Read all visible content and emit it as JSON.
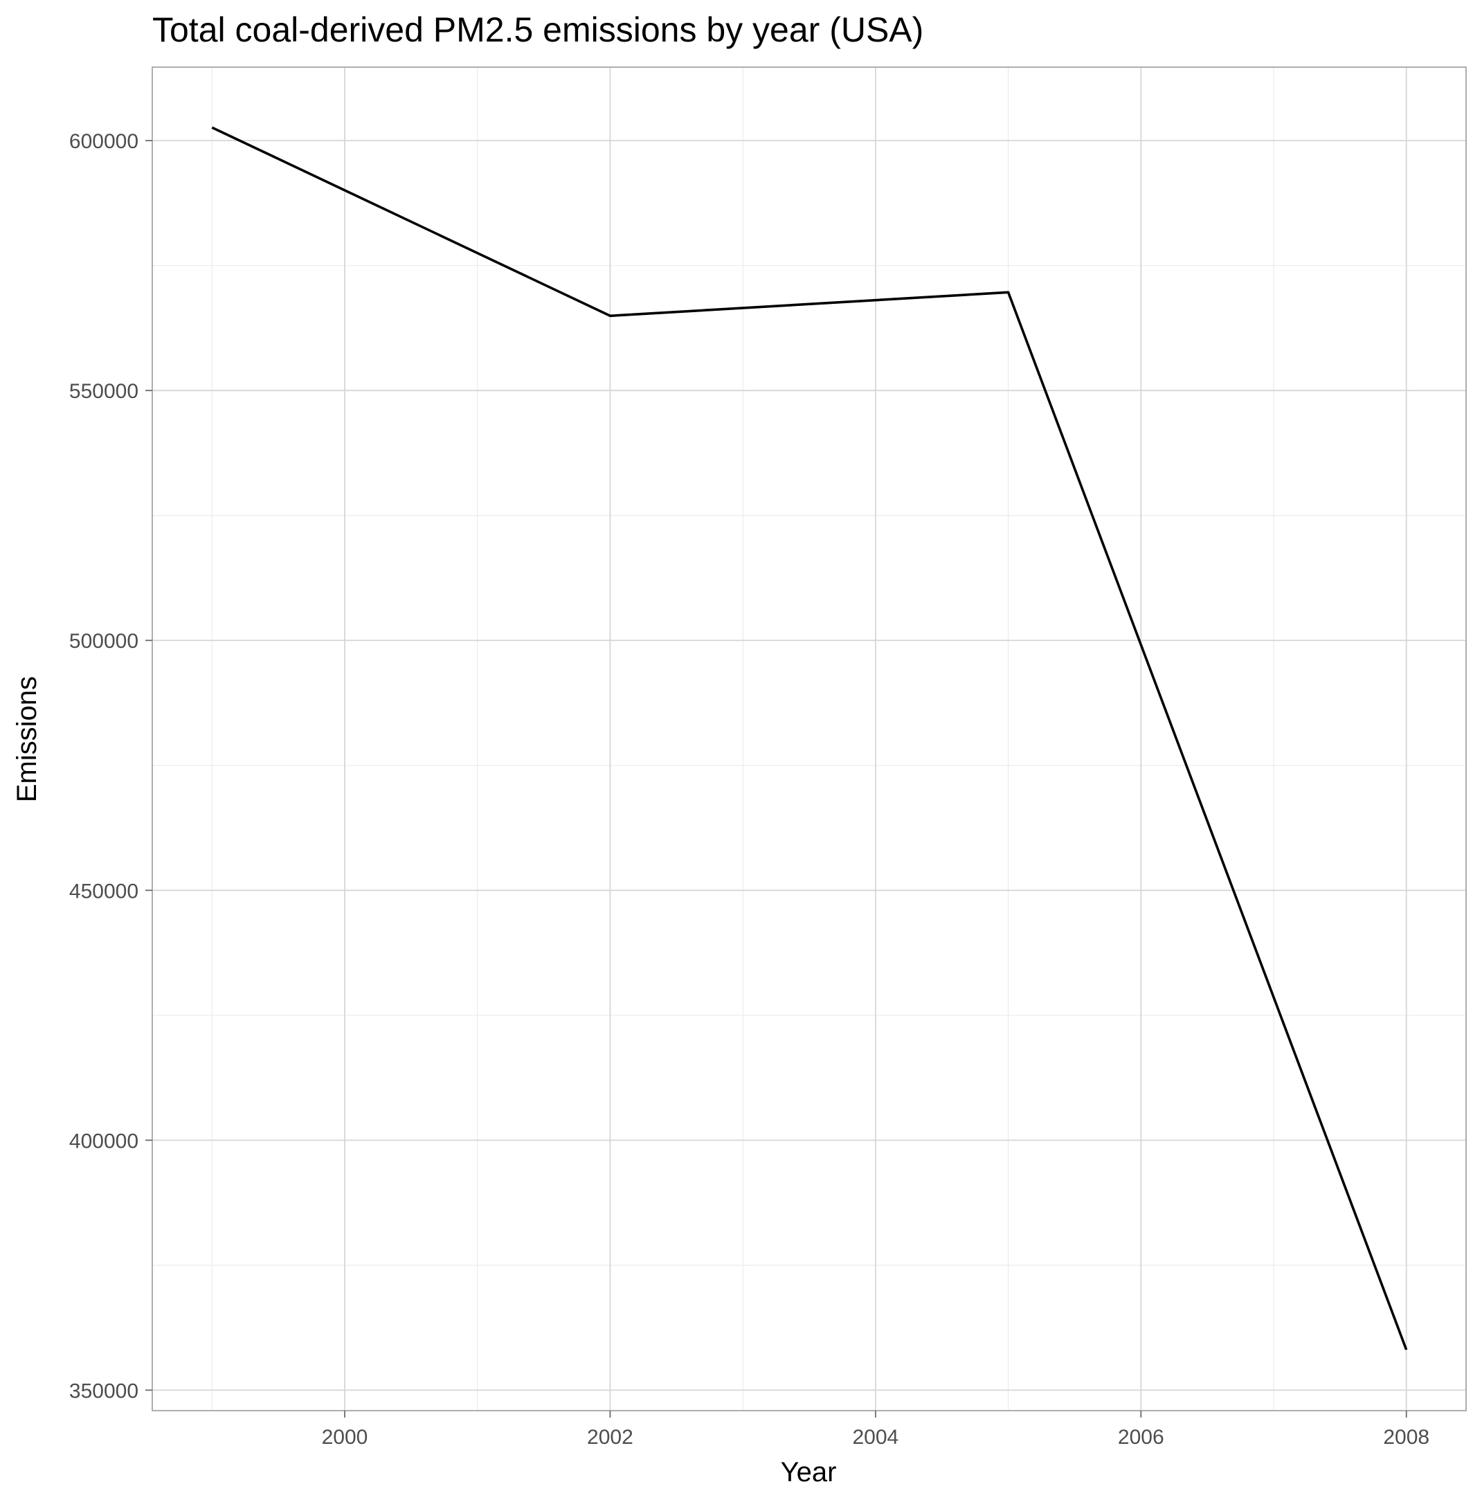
{
  "chart_data": {
    "type": "line",
    "title": "Total coal-derived PM2.5 emissions by year (USA)",
    "xlabel": "Year",
    "ylabel": "Emissions",
    "x": [
      1999,
      2002,
      2005,
      2008
    ],
    "series": [
      {
        "values": [
          602625,
          564940,
          569655,
          358083
        ]
      }
    ],
    "xlim": [
      1998.55,
      2008.45
    ],
    "ylim": [
      345900,
      614700
    ],
    "x_ticks": [
      2000,
      2002,
      2004,
      2006,
      2008
    ],
    "x_tick_labels": [
      "2000",
      "2002",
      "2004",
      "2006",
      "2008"
    ],
    "y_ticks": [
      350000,
      400000,
      450000,
      500000,
      550000,
      600000
    ],
    "y_tick_labels": [
      "350000",
      "400000",
      "450000",
      "500000",
      "550000",
      "600000"
    ],
    "grid": true,
    "line_color": "#000000",
    "legend": "none"
  }
}
